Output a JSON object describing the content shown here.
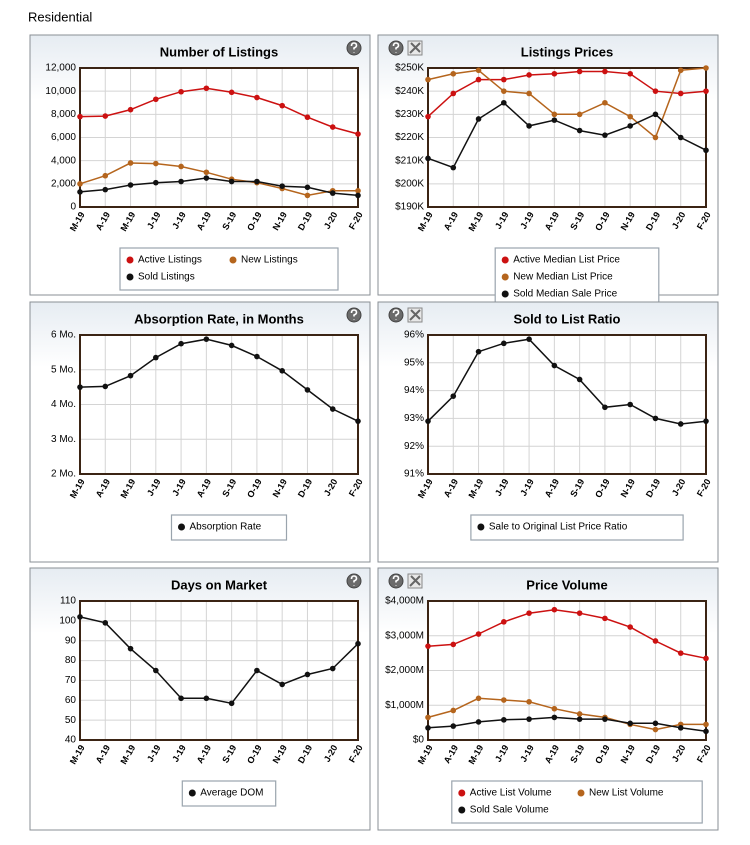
{
  "header": {
    "title": "Residential"
  },
  "chart_data": [
    {
      "type": "line",
      "title": "Number of Listings",
      "categories": [
        "M-19",
        "A-19",
        "M-19",
        "J-19",
        "J-19",
        "A-19",
        "S-19",
        "O-19",
        "N-19",
        "D-19",
        "J-20",
        "F-20"
      ],
      "ylim": [
        0,
        12000
      ],
      "yticks": [
        0,
        {
          "value": 2000,
          "label": "2,000"
        },
        {
          "value": 4000,
          "label": "4,000"
        },
        {
          "value": 6000,
          "label": "6,000"
        },
        {
          "value": 8000,
          "label": "8,000"
        },
        {
          "value": 10000,
          "label": "10,000"
        },
        {
          "value": 12000,
          "label": "12,000"
        }
      ],
      "grid": true,
      "series": [
        {
          "name": "Active Listings",
          "color": "#cc1111",
          "values": [
            7800,
            7850,
            8400,
            9300,
            9950,
            10250,
            9900,
            9450,
            8750,
            7750,
            6900,
            6300
          ]
        },
        {
          "name": "New Listings",
          "color": "#b5651d",
          "values": [
            2000,
            2700,
            3800,
            3750,
            3500,
            3000,
            2400,
            2100,
            1600,
            1000,
            1400,
            1400
          ]
        },
        {
          "name": "Sold Listings",
          "color": "#111111",
          "values": [
            1300,
            1500,
            1900,
            2100,
            2200,
            2500,
            2200,
            2200,
            1800,
            1700,
            1200,
            1000
          ]
        }
      ]
    },
    {
      "type": "line",
      "title": "Listings Prices",
      "categories": [
        "M-19",
        "A-19",
        "M-19",
        "J-19",
        "J-19",
        "A-19",
        "S-19",
        "O-19",
        "N-19",
        "D-19",
        "J-20",
        "F-20"
      ],
      "ylim": [
        190000,
        250000
      ],
      "yticks": [
        {
          "value": 190000,
          "label": "$190K"
        },
        {
          "value": 200000,
          "label": "$200K"
        },
        {
          "value": 210000,
          "label": "$210K"
        },
        {
          "value": 220000,
          "label": "$220K"
        },
        {
          "value": 230000,
          "label": "$230K"
        },
        {
          "value": 240000,
          "label": "$240K"
        },
        {
          "value": 250000,
          "label": "$250K"
        }
      ],
      "grid": true,
      "series": [
        {
          "name": "Active Median List Price",
          "color": "#cc1111",
          "values": [
            229000,
            239000,
            245000,
            245000,
            247000,
            247500,
            248500,
            248500,
            247500,
            240000,
            239000,
            240000
          ]
        },
        {
          "name": "New Median List Price",
          "color": "#b5651d",
          "values": [
            245000,
            247500,
            249000,
            240000,
            239000,
            230000,
            230000,
            235000,
            229000,
            220000,
            249000,
            250000
          ]
        },
        {
          "name": "Sold Median Sale Price",
          "color": "#111111",
          "values": [
            211000,
            207000,
            228000,
            235000,
            225000,
            227500,
            223000,
            221000,
            225000,
            230000,
            220000,
            214500
          ]
        }
      ]
    },
    {
      "type": "line",
      "title": "Absorption Rate, in Months",
      "categories": [
        "M-19",
        "A-19",
        "M-19",
        "J-19",
        "J-19",
        "A-19",
        "S-19",
        "O-19",
        "N-19",
        "D-19",
        "J-20",
        "F-20"
      ],
      "ylim": [
        2,
        6
      ],
      "yticks": [
        {
          "value": 2,
          "label": "2 Mo."
        },
        {
          "value": 3,
          "label": "3 Mo."
        },
        {
          "value": 4,
          "label": "4 Mo."
        },
        {
          "value": 5,
          "label": "5 Mo."
        },
        {
          "value": 6,
          "label": "6 Mo."
        }
      ],
      "grid": true,
      "series": [
        {
          "name": "Absorption Rate",
          "color": "#111111",
          "values": [
            4.5,
            4.52,
            4.83,
            5.35,
            5.75,
            5.88,
            5.7,
            5.38,
            4.97,
            4.42,
            3.87,
            3.52
          ]
        }
      ]
    },
    {
      "type": "line",
      "title": "Sold to List Ratio",
      "categories": [
        "M-19",
        "A-19",
        "M-19",
        "J-19",
        "J-19",
        "A-19",
        "S-19",
        "O-19",
        "N-19",
        "D-19",
        "J-20",
        "F-20"
      ],
      "ylim": [
        91,
        96
      ],
      "yticks": [
        {
          "value": 91,
          "label": "91%"
        },
        {
          "value": 92,
          "label": "92%"
        },
        {
          "value": 93,
          "label": "93%"
        },
        {
          "value": 94,
          "label": "94%"
        },
        {
          "value": 95,
          "label": "95%"
        },
        {
          "value": 96,
          "label": "96%"
        }
      ],
      "grid": true,
      "series": [
        {
          "name": "Sale to Original List Price Ratio",
          "color": "#111111",
          "values": [
            92.9,
            93.8,
            95.4,
            95.7,
            95.85,
            94.9,
            94.4,
            93.4,
            93.5,
            93.0,
            92.8,
            92.9
          ]
        }
      ]
    },
    {
      "type": "line",
      "title": "Days on Market",
      "categories": [
        "M-19",
        "A-19",
        "M-19",
        "J-19",
        "J-19",
        "A-19",
        "S-19",
        "O-19",
        "N-19",
        "D-19",
        "J-20",
        "F-20"
      ],
      "ylim": [
        40,
        110
      ],
      "yticks": [
        40,
        50,
        60,
        70,
        80,
        90,
        100,
        110
      ],
      "grid": true,
      "series": [
        {
          "name": "Average DOM",
          "color": "#111111",
          "values": [
            102,
            99,
            86,
            75,
            61,
            61,
            58.5,
            75,
            68,
            73,
            76,
            88.5
          ]
        }
      ]
    },
    {
      "type": "line",
      "title": "Price Volume",
      "categories": [
        "M-19",
        "A-19",
        "M-19",
        "J-19",
        "J-19",
        "A-19",
        "S-19",
        "O-19",
        "N-19",
        "D-19",
        "J-20",
        "F-20"
      ],
      "ylim": [
        0,
        4000
      ],
      "yticks": [
        {
          "value": 0,
          "label": "$0"
        },
        {
          "value": 1000,
          "label": "$1,000M"
        },
        {
          "value": 2000,
          "label": "$2,000M"
        },
        {
          "value": 3000,
          "label": "$3,000M"
        },
        {
          "value": 4000,
          "label": "$4,000M"
        }
      ],
      "grid": true,
      "series": [
        {
          "name": "Active List Volume",
          "color": "#cc1111",
          "values": [
            2700,
            2750,
            3050,
            3400,
            3650,
            3750,
            3650,
            3500,
            3250,
            2850,
            2500,
            2350
          ]
        },
        {
          "name": "New List Volume",
          "color": "#b5651d",
          "values": [
            650,
            850,
            1200,
            1150,
            1100,
            900,
            750,
            650,
            450,
            300,
            450,
            450
          ]
        },
        {
          "name": "Sold Sale Volume",
          "color": "#111111",
          "values": [
            350,
            400,
            520,
            580,
            600,
            650,
            600,
            600,
            480,
            480,
            350,
            250
          ]
        }
      ]
    }
  ]
}
